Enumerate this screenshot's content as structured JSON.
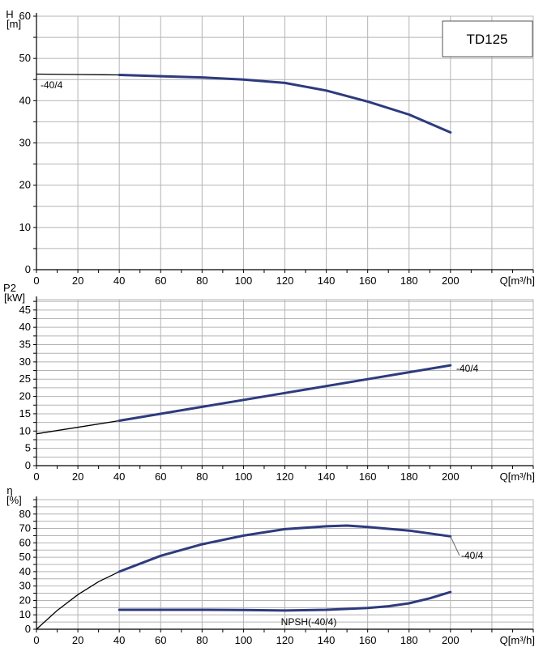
{
  "title_box": {
    "text": "TD125"
  },
  "colors": {
    "curve": "#2e3a7e",
    "grid": "#b4b4b4",
    "axis": "#000000"
  },
  "chart_data": [
    {
      "id": "head",
      "type": "line",
      "ylabel": "H",
      "yunit": "[m]",
      "xlabel": "Q[m³/h]",
      "xlim": [
        0,
        240
      ],
      "ylim": [
        0,
        60
      ],
      "xticks": [
        0,
        20,
        40,
        60,
        80,
        100,
        120,
        140,
        160,
        180,
        200
      ],
      "yticks": [
        0,
        10,
        20,
        30,
        40,
        50,
        60
      ],
      "grid": true,
      "series": [
        {
          "name": "-40/4",
          "x": [
            0,
            20,
            40,
            60,
            80,
            100,
            120,
            140,
            160,
            180,
            200
          ],
          "y": [
            46.3,
            46.2,
            46.1,
            45.8,
            45.5,
            45.0,
            44.2,
            42.4,
            39.8,
            36.7,
            32.5
          ],
          "extrapolated_below": 40
        }
      ]
    },
    {
      "id": "power",
      "type": "line",
      "ylabel": "P2",
      "yunit": "[kW]",
      "xlabel": "Q[m³/h]",
      "xlim": [
        0,
        240
      ],
      "ylim": [
        0,
        48
      ],
      "xticks": [
        0,
        20,
        40,
        60,
        80,
        100,
        120,
        140,
        160,
        180,
        200
      ],
      "yticks": [
        0,
        5,
        10,
        15,
        20,
        25,
        30,
        35,
        40,
        45
      ],
      "grid": true,
      "series": [
        {
          "name": "-40/4",
          "x": [
            0,
            40,
            80,
            120,
            160,
            200
          ],
          "y": [
            9.2,
            13.0,
            17.0,
            21.0,
            25.0,
            29.0
          ],
          "extrapolated_below": 40
        }
      ]
    },
    {
      "id": "efficiency",
      "type": "line",
      "ylabel": "η",
      "yunit": "[%]",
      "xlabel": "Q[m³/h]",
      "xlim": [
        0,
        240
      ],
      "ylim": [
        0,
        90
      ],
      "xticks": [
        0,
        20,
        40,
        60,
        80,
        100,
        120,
        140,
        160,
        180,
        200
      ],
      "yticks": [
        0,
        10,
        20,
        30,
        40,
        50,
        60,
        70,
        80
      ],
      "grid": true,
      "series": [
        {
          "name": "-40/4",
          "x": [
            0,
            10,
            20,
            30,
            40,
            60,
            80,
            100,
            120,
            140,
            150,
            160,
            180,
            200
          ],
          "y": [
            0,
            13,
            24,
            33,
            40,
            51,
            59,
            65,
            69.5,
            71.5,
            72,
            71,
            68.5,
            64.5
          ],
          "extrapolated_below": 40
        },
        {
          "name": "NPSH(-40/4)",
          "x": [
            40,
            60,
            80,
            100,
            120,
            140,
            160,
            170,
            180,
            190,
            200
          ],
          "y": [
            13.5,
            13.5,
            13.5,
            13.4,
            13.0,
            13.5,
            14.8,
            16.0,
            18.0,
            21.5,
            25.8
          ]
        }
      ]
    }
  ]
}
